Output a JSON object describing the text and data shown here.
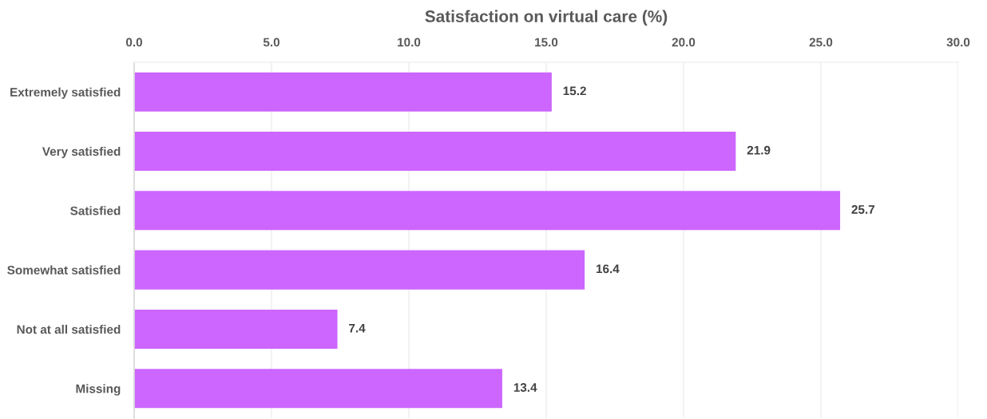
{
  "chart_data": {
    "type": "bar",
    "orientation": "horizontal",
    "xlabel": "Satisfaction on virtual care (%)",
    "categories": [
      "Extremely satisfied",
      "Very satisfied",
      "Satisfied",
      "Somewhat satisfied",
      "Not at all satisfied",
      "Missing"
    ],
    "values": [
      15.2,
      21.9,
      25.7,
      16.4,
      7.4,
      13.4
    ],
    "color": "#cc66ff",
    "xlim": [
      0,
      30
    ],
    "xticks": [
      {
        "value": 0,
        "label": "0.0"
      },
      {
        "value": 5,
        "label": "5.0"
      },
      {
        "value": 10,
        "label": "10.0"
      },
      {
        "value": 15,
        "label": "15.0"
      },
      {
        "value": 20,
        "label": "20.0"
      },
      {
        "value": 25,
        "label": "25.0"
      },
      {
        "value": 30,
        "label": "30.0"
      }
    ],
    "grid": "x",
    "data_labels": true
  }
}
